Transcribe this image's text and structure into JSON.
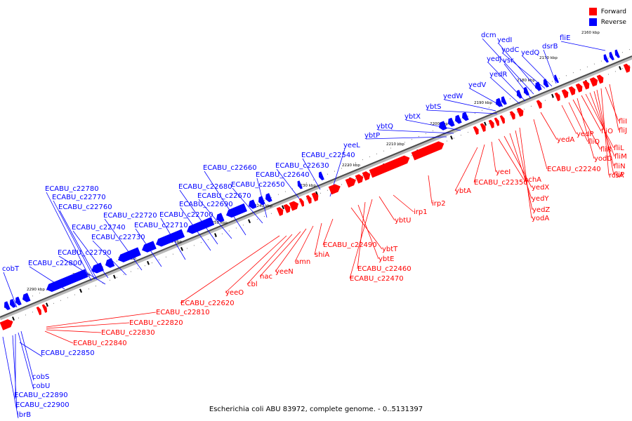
{
  "caption": "Escherichia coli ABU 83972, complete genome. - 0..5131397",
  "legend": {
    "forward": {
      "label": "Forward",
      "color": "#ff0000"
    },
    "reverse": {
      "label": "Reverse",
      "color": "#0000ff"
    }
  },
  "ticks": [
    "2160 kbp",
    "2170 kbp",
    "2180 kbp",
    "2190 kbp",
    "2200 kbp",
    "2210 kbp",
    "2220 kbp",
    "2230 kbp",
    "2240 kbp",
    "2250 kbp",
    "2260 kbp",
    "2270 kbp",
    "2280 kbp",
    "2290 kbp"
  ],
  "reverse_genes": [
    "cobT",
    "ECABU_c22800",
    "ECABU_c22790",
    "ECABU_c22780",
    "ECABU_c22770",
    "ECABU_c22760",
    "ECABU_c22740",
    "ECABU_c22730",
    "ECABU_c22720",
    "ECABU_c22710",
    "ECABU_c22700",
    "ECABU_c22690",
    "ECABU_c22680",
    "ECABU_c22670",
    "ECABU_c22660",
    "ECABU_c22650",
    "ECABU_c22640",
    "ECABU_c22630",
    "ECABU_c22540",
    "yeeL",
    "ybtP",
    "ybtQ",
    "ybtX",
    "ybtS",
    "yedW",
    "yedV",
    "yedR",
    "yedJ",
    "vsr",
    "dcm",
    "yedI",
    "yodC",
    "yedQ",
    "dsrB",
    "fliE",
    "ECABU_c22850",
    "cobS",
    "cobU",
    "ECABU_c22890",
    "ECABU_c22900",
    "ibrB"
  ],
  "forward_genes": [
    "ECABU_c22810",
    "ECABU_c22820",
    "ECABU_c22830",
    "ECABU_c22840",
    "ECABU_c22620",
    "yeeO",
    "cbl",
    "nac",
    "yeeN",
    "amn",
    "shiA",
    "ECABU_c22490",
    "ybtT",
    "ybtE",
    "ECABU_c22460",
    "ECABU_c22470",
    "ybtU",
    "irp1",
    "irp2",
    "ybtA",
    "ECABU_c22350",
    "yeeI",
    "hchA",
    "yedX",
    "yedY",
    "yedZ",
    "yodA",
    "ECABU_c22240",
    "yedA",
    "yedP",
    "fliQ",
    "fliR",
    "yodD",
    "fliO",
    "fliL",
    "fliM",
    "fliN",
    "fliP",
    "rcsA",
    "fliI",
    "fliJ"
  ]
}
